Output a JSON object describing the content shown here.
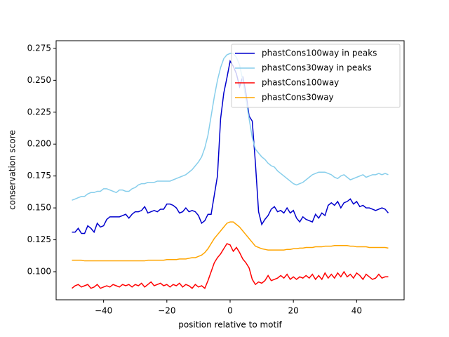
{
  "chart_data": {
    "type": "line",
    "xlabel": "position relative to motif",
    "ylabel": "conservation score",
    "xlim": [
      -55,
      55
    ],
    "ylim": [
      0.078,
      0.281
    ],
    "xticks": [
      {
        "value": -40,
        "label": "−40"
      },
      {
        "value": -20,
        "label": "−20"
      },
      0,
      20,
      40
    ],
    "yticks": [
      {
        "value": 0.1,
        "label": "0.100"
      },
      {
        "value": 0.125,
        "label": "0.125"
      },
      {
        "value": 0.15,
        "label": "0.150"
      },
      {
        "value": 0.175,
        "label": "0.175"
      },
      {
        "value": 0.2,
        "label": "0.200"
      },
      {
        "value": 0.225,
        "label": "0.225"
      },
      {
        "value": 0.25,
        "label": "0.250"
      },
      {
        "value": 0.275,
        "label": "0.275"
      }
    ],
    "grid": false,
    "legend": "upper right",
    "x": [
      -50,
      -49,
      -48,
      -47,
      -46,
      -45,
      -44,
      -43,
      -42,
      -41,
      -40,
      -39,
      -38,
      -37,
      -36,
      -35,
      -34,
      -33,
      -32,
      -31,
      -30,
      -29,
      -28,
      -27,
      -26,
      -25,
      -24,
      -23,
      -22,
      -21,
      -20,
      -19,
      -18,
      -17,
      -16,
      -15,
      -14,
      -13,
      -12,
      -11,
      -10,
      -9,
      -8,
      -7,
      -6,
      -5,
      -4,
      -3,
      -2,
      -1,
      0,
      1,
      2,
      3,
      4,
      5,
      6,
      7,
      8,
      9,
      10,
      11,
      12,
      13,
      14,
      15,
      16,
      17,
      18,
      19,
      20,
      21,
      22,
      23,
      24,
      25,
      26,
      27,
      28,
      29,
      30,
      31,
      32,
      33,
      34,
      35,
      36,
      37,
      38,
      39,
      40,
      41,
      42,
      43,
      44,
      45,
      46,
      47,
      48,
      49,
      50
    ],
    "series": [
      {
        "name": "phastCons100way in peaks",
        "color": "#0000cd",
        "values": [
          0.131,
          0.131,
          0.134,
          0.13,
          0.13,
          0.136,
          0.134,
          0.131,
          0.138,
          0.135,
          0.136,
          0.141,
          0.143,
          0.143,
          0.143,
          0.143,
          0.144,
          0.145,
          0.142,
          0.145,
          0.147,
          0.147,
          0.148,
          0.151,
          0.146,
          0.147,
          0.148,
          0.147,
          0.149,
          0.149,
          0.153,
          0.153,
          0.152,
          0.15,
          0.146,
          0.147,
          0.15,
          0.147,
          0.148,
          0.147,
          0.144,
          0.138,
          0.14,
          0.145,
          0.145,
          0.16,
          0.175,
          0.22,
          0.24,
          0.252,
          0.265,
          0.261,
          0.255,
          0.245,
          0.253,
          0.24,
          0.222,
          0.218,
          0.185,
          0.147,
          0.137,
          0.141,
          0.144,
          0.149,
          0.151,
          0.147,
          0.148,
          0.146,
          0.15,
          0.146,
          0.148,
          0.142,
          0.139,
          0.143,
          0.141,
          0.14,
          0.139,
          0.145,
          0.142,
          0.146,
          0.144,
          0.152,
          0.154,
          0.152,
          0.155,
          0.15,
          0.154,
          0.155,
          0.157,
          0.153,
          0.155,
          0.151,
          0.152,
          0.15,
          0.15,
          0.149,
          0.148,
          0.149,
          0.15,
          0.149,
          0.146
        ]
      },
      {
        "name": "phastCons30way in peaks",
        "color": "#87ceeb",
        "values": [
          0.156,
          0.157,
          0.158,
          0.159,
          0.159,
          0.161,
          0.162,
          0.162,
          0.163,
          0.163,
          0.165,
          0.165,
          0.164,
          0.163,
          0.162,
          0.164,
          0.164,
          0.163,
          0.163,
          0.165,
          0.166,
          0.168,
          0.169,
          0.169,
          0.17,
          0.17,
          0.17,
          0.171,
          0.171,
          0.171,
          0.171,
          0.171,
          0.172,
          0.173,
          0.174,
          0.175,
          0.176,
          0.178,
          0.18,
          0.183,
          0.186,
          0.19,
          0.197,
          0.207,
          0.222,
          0.237,
          0.25,
          0.26,
          0.267,
          0.27,
          0.271,
          0.271,
          0.268,
          0.262,
          0.25,
          0.235,
          0.22,
          0.205,
          0.196,
          0.193,
          0.19,
          0.188,
          0.185,
          0.183,
          0.182,
          0.179,
          0.177,
          0.175,
          0.173,
          0.171,
          0.169,
          0.168,
          0.169,
          0.17,
          0.172,
          0.174,
          0.176,
          0.177,
          0.178,
          0.178,
          0.178,
          0.177,
          0.176,
          0.174,
          0.173,
          0.175,
          0.176,
          0.174,
          0.172,
          0.173,
          0.174,
          0.175,
          0.176,
          0.174,
          0.175,
          0.176,
          0.176,
          0.177,
          0.176,
          0.177,
          0.176
        ]
      },
      {
        "name": "phastCons100way",
        "color": "#ff0000",
        "values": [
          0.087,
          0.089,
          0.09,
          0.088,
          0.089,
          0.09,
          0.087,
          0.088,
          0.09,
          0.087,
          0.088,
          0.089,
          0.088,
          0.09,
          0.089,
          0.088,
          0.09,
          0.089,
          0.09,
          0.088,
          0.09,
          0.089,
          0.091,
          0.088,
          0.09,
          0.092,
          0.089,
          0.09,
          0.091,
          0.089,
          0.09,
          0.088,
          0.09,
          0.089,
          0.091,
          0.088,
          0.09,
          0.089,
          0.087,
          0.09,
          0.088,
          0.089,
          0.087,
          0.093,
          0.1,
          0.107,
          0.111,
          0.114,
          0.118,
          0.122,
          0.121,
          0.116,
          0.119,
          0.115,
          0.11,
          0.107,
          0.103,
          0.094,
          0.09,
          0.092,
          0.091,
          0.093,
          0.097,
          0.093,
          0.094,
          0.095,
          0.097,
          0.095,
          0.098,
          0.094,
          0.096,
          0.094,
          0.096,
          0.095,
          0.097,
          0.095,
          0.098,
          0.094,
          0.097,
          0.094,
          0.099,
          0.095,
          0.098,
          0.095,
          0.099,
          0.096,
          0.1,
          0.096,
          0.098,
          0.095,
          0.099,
          0.097,
          0.094,
          0.098,
          0.096,
          0.094,
          0.095,
          0.098,
          0.095,
          0.096,
          0.096
        ]
      },
      {
        "name": "phastCons30way",
        "color": "#ffa500",
        "values": [
          0.109,
          0.109,
          0.109,
          0.109,
          0.1085,
          0.1085,
          0.1085,
          0.1085,
          0.1085,
          0.1085,
          0.1085,
          0.1085,
          0.1085,
          0.1085,
          0.1085,
          0.1085,
          0.1085,
          0.1085,
          0.1085,
          0.1085,
          0.1085,
          0.1085,
          0.1085,
          0.1085,
          0.109,
          0.109,
          0.109,
          0.109,
          0.109,
          0.109,
          0.1095,
          0.1095,
          0.1095,
          0.1095,
          0.11,
          0.11,
          0.11,
          0.1105,
          0.111,
          0.111,
          0.112,
          0.113,
          0.115,
          0.118,
          0.122,
          0.126,
          0.129,
          0.132,
          0.135,
          0.138,
          0.139,
          0.139,
          0.137,
          0.135,
          0.132,
          0.129,
          0.126,
          0.123,
          0.12,
          0.119,
          0.118,
          0.1175,
          0.117,
          0.117,
          0.117,
          0.117,
          0.117,
          0.117,
          0.1175,
          0.1175,
          0.118,
          0.118,
          0.1185,
          0.1185,
          0.119,
          0.119,
          0.119,
          0.1195,
          0.1195,
          0.1195,
          0.12,
          0.12,
          0.12,
          0.1205,
          0.1205,
          0.1205,
          0.1205,
          0.1205,
          0.12,
          0.12,
          0.1195,
          0.1195,
          0.1195,
          0.1195,
          0.119,
          0.119,
          0.119,
          0.119,
          0.119,
          0.119,
          0.1185
        ]
      }
    ]
  }
}
